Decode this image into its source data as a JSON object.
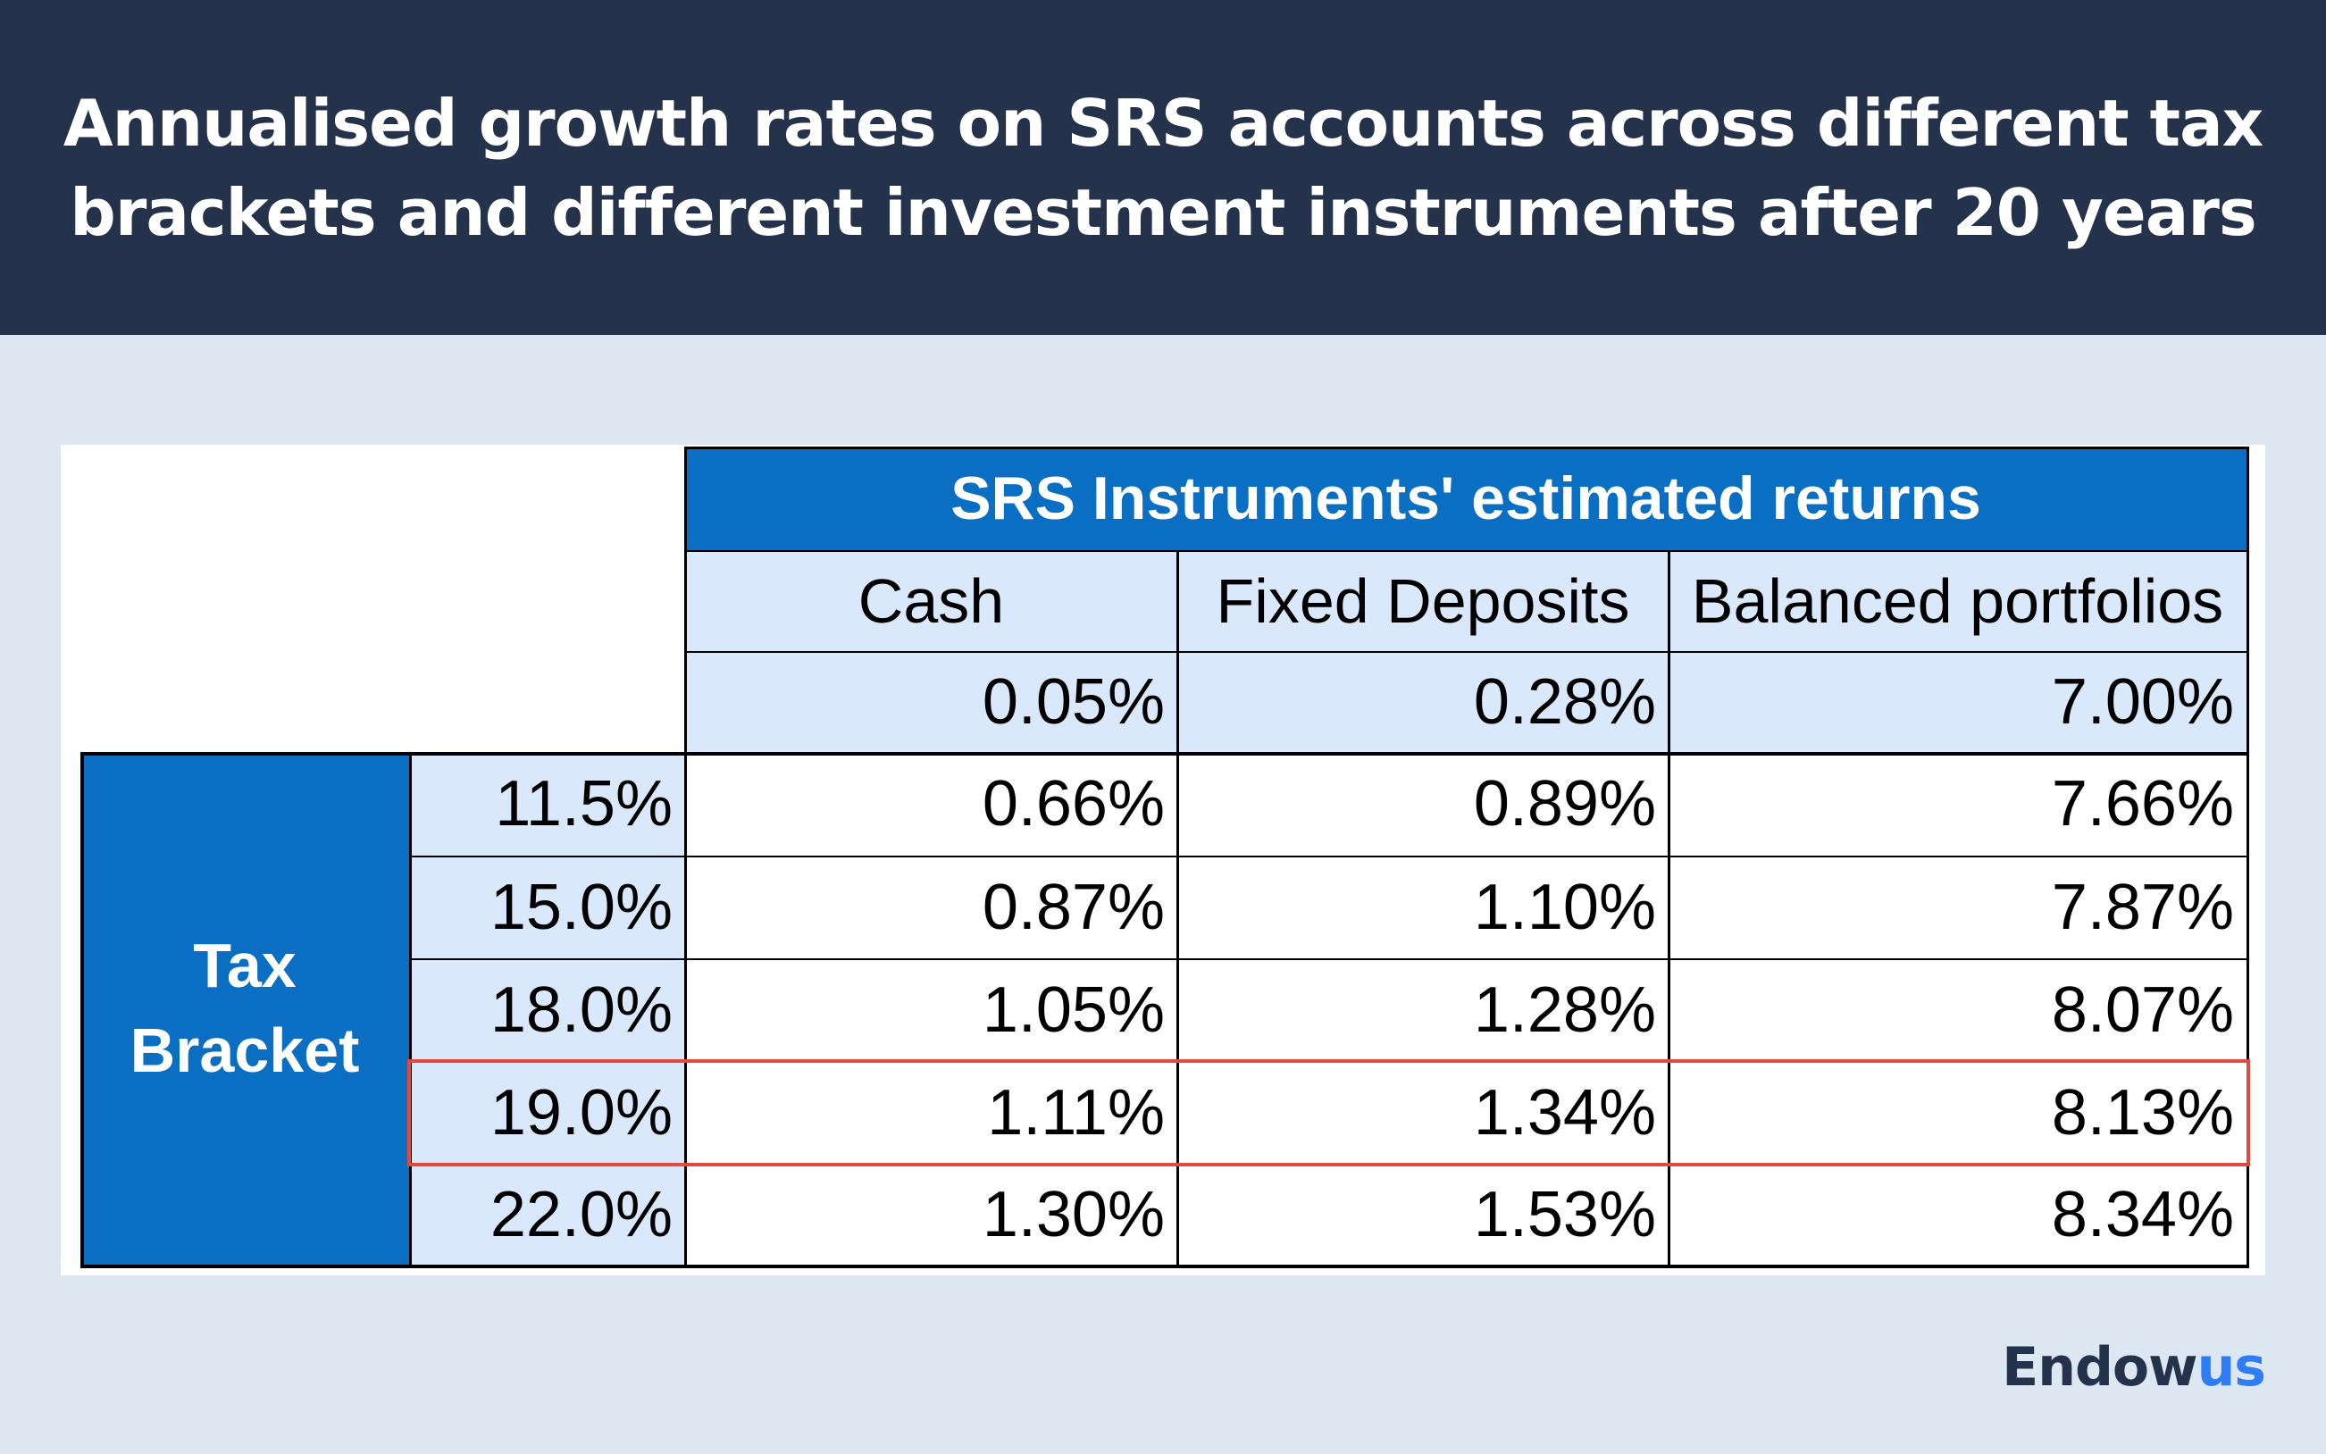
{
  "title": "Annualised  growth rates on SRS accounts across different tax brackets and different investment instruments after 20 years",
  "brand": {
    "name_main": "Endow",
    "name_accent": "us",
    "accent_color": "#2e7cf6"
  },
  "colors": {
    "header_bg": "#25324b",
    "table_blue": "#0a6fc2",
    "light_blue": "#dae8fb",
    "highlight_border": "#e14b3e"
  },
  "chart_data": {
    "type": "table",
    "banner": "SRS Instruments' estimated returns",
    "row_group_label": "Tax Bracket",
    "columns": [
      "Cash",
      "Fixed Deposits",
      "Balanced portfolios"
    ],
    "base_returns": [
      "0.05%",
      "0.28%",
      "7.00%"
    ],
    "rows": [
      {
        "bracket": "11.5%",
        "values": [
          "0.66%",
          "0.89%",
          "7.66%"
        ]
      },
      {
        "bracket": "15.0%",
        "values": [
          "0.87%",
          "1.10%",
          "7.87%"
        ]
      },
      {
        "bracket": "18.0%",
        "values": [
          "1.05%",
          "1.28%",
          "8.07%"
        ]
      },
      {
        "bracket": "19.0%",
        "values": [
          "1.11%",
          "1.34%",
          "8.13%"
        ],
        "highlighted": true
      },
      {
        "bracket": "22.0%",
        "values": [
          "1.30%",
          "1.53%",
          "8.34%"
        ]
      }
    ]
  }
}
